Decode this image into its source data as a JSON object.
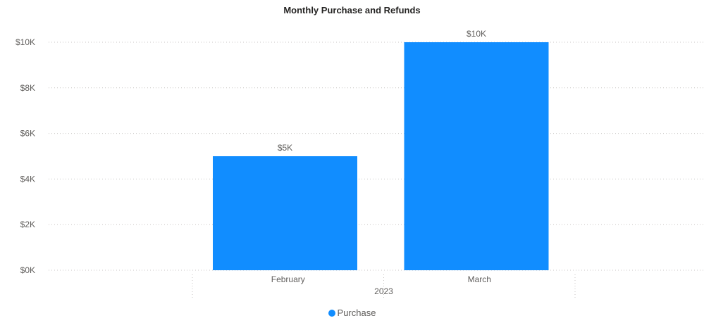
{
  "chart_data": {
    "type": "bar",
    "title": "Monthly Purchase and Refunds",
    "categories": [
      "February",
      "March"
    ],
    "group_label": "2023",
    "series": [
      {
        "name": "Purchase",
        "values": [
          5000,
          10000
        ],
        "data_labels": [
          "$5K",
          "$10K"
        ],
        "color": "#118dff"
      }
    ],
    "ylim": [
      0,
      10000
    ],
    "y_ticks": [
      0,
      2000,
      4000,
      6000,
      8000,
      10000
    ],
    "y_tick_labels": [
      "$0K",
      "$2K",
      "$4K",
      "$6K",
      "$8K",
      "$10K"
    ],
    "grid": true,
    "legend_position": "bottom-center"
  }
}
